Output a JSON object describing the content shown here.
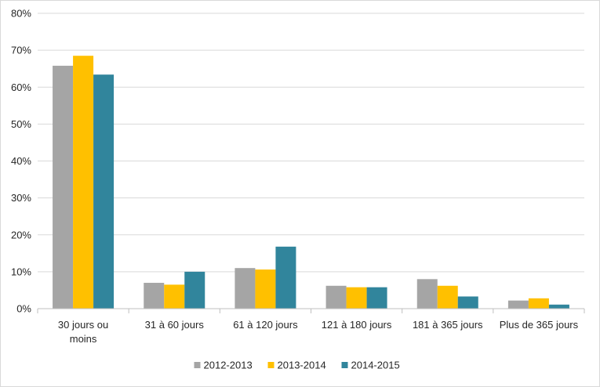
{
  "chart_data": {
    "type": "bar",
    "title": "",
    "xlabel": "",
    "ylabel": "",
    "categories": [
      [
        "30 jours ou",
        "moins"
      ],
      [
        "31 à 60 jours"
      ],
      [
        "61 à 120 jours"
      ],
      [
        "121 à 180 jours"
      ],
      [
        "181 à 365 jours"
      ],
      [
        "Plus de 365 jours"
      ]
    ],
    "y_ticks": [
      "0%",
      "10%",
      "20%",
      "30%",
      "40%",
      "50%",
      "60%",
      "70%",
      "80%"
    ],
    "ylim": [
      0,
      80
    ],
    "grid": true,
    "legend_position": "bottom",
    "series": [
      {
        "name": "2012-2013",
        "color": "#a5a5a5",
        "values": [
          65.8,
          7.0,
          11.0,
          6.2,
          8.0,
          2.2
        ]
      },
      {
        "name": "2013-2014",
        "color": "#ffc000",
        "values": [
          68.5,
          6.5,
          10.6,
          5.8,
          6.2,
          2.8
        ]
      },
      {
        "name": "2014-2015",
        "color": "#31859c",
        "values": [
          63.4,
          10.0,
          16.8,
          5.8,
          3.3,
          1.1
        ]
      }
    ]
  }
}
